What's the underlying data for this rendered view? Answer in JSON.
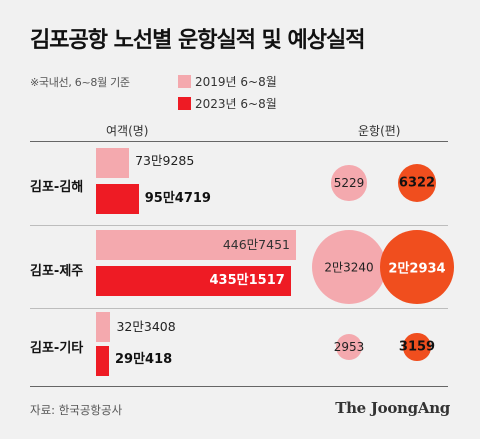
{
  "header": {
    "title": "김포공항 노선별 운항실적 및 예상실적",
    "note": "※국내선, 6~8월 기준"
  },
  "legend": [
    {
      "label": "2019년 6~8월",
      "color": "#f4a9ae"
    },
    {
      "label": "2023년 6~8월",
      "color": "#ee1b24"
    }
  ],
  "columns": {
    "passengers": "여객(명)",
    "flights": "운항(편)"
  },
  "colors": {
    "y2019": "#f4a9ae",
    "y2023_bar": "#ee1b24",
    "y2023_bubble": "#f04e1e"
  },
  "chart_data": {
    "type": "bar",
    "categories": [
      "김포-김해",
      "김포-제주",
      "김포-기타"
    ],
    "series": [
      {
        "name": "2019년 6~8월",
        "passengers": [
          739285,
          4467451,
          323408
        ],
        "flights": [
          5229,
          23240,
          2953
        ]
      },
      {
        "name": "2023년 6~8월",
        "passengers": [
          954719,
          4351517,
          290418
        ],
        "flights": [
          6322,
          22934,
          3159
        ]
      }
    ]
  },
  "rows": [
    {
      "route": "김포-김해",
      "p2019": "73만9285",
      "p2023": "95만4719",
      "f2019": "5229",
      "f2023": "6322"
    },
    {
      "route": "김포-제주",
      "p2019": "446만7451",
      "p2023": "435만1517",
      "f2019": "2만3240",
      "f2023": "2만2934"
    },
    {
      "route": "김포-기타",
      "p2019": "32만3408",
      "p2023": "29만418",
      "f2019": "2953",
      "f2023": "3159"
    }
  ],
  "footer": {
    "source": "자료: 한국공항공사",
    "logo": "The JoongAng"
  }
}
